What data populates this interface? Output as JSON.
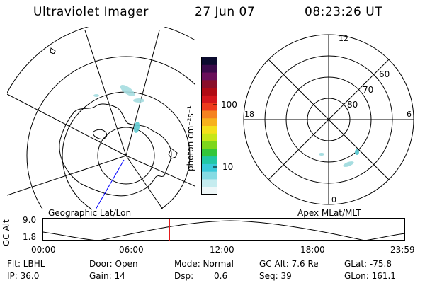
{
  "header": {
    "instrument": "Ultraviolet Imager",
    "date": "27 Jun 07",
    "time": "08:23:26 UT"
  },
  "colorbar": {
    "label": "photon cm⁻²s⁻¹",
    "ticks": [
      "100",
      "10"
    ],
    "colors": [
      "#0b0b2e",
      "#3a0a4a",
      "#6a0f5a",
      "#8a0f2a",
      "#b00b14",
      "#d4161c",
      "#ee3b1d",
      "#f58220",
      "#f7b11c",
      "#f4e01a",
      "#c7e617",
      "#7dd61c",
      "#33c63a",
      "#21c7a4",
      "#39c9d9",
      "#86dbe3",
      "#c5ecef",
      "#eef7f8"
    ]
  },
  "geographic_label": "Geographic Lat/Lon",
  "apex_label": "Apex MLat/MLT",
  "polar": {
    "mlt_labels": {
      "top": "12",
      "left": "18",
      "right": "6",
      "bottom": "0"
    },
    "lat_labels": [
      "60",
      "70",
      "80"
    ]
  },
  "timeline": {
    "ylabel": "GC Alt",
    "ymax": "9.0",
    "ymin": "1.8",
    "ticks": [
      "00:00",
      "06:00",
      "12:00",
      "18:00",
      "23:59"
    ],
    "marker_fraction": 0.35
  },
  "info": {
    "flt": "Flt: LBHL",
    "ip": "IP: 36.0",
    "door": "Door: Open",
    "gain": "Gain: 14",
    "mode": "Mode: Normal",
    "dsp_label": "Dsp:",
    "dsp_value": "0.6",
    "gcalt": "GC Alt: 7.6 Re",
    "seq": "Seq: 39",
    "glat": "GLat: -75.8",
    "glon": "GLon: 161.1"
  },
  "colors": {
    "marker": "#e41a1c",
    "track": "#0000ff",
    "aurora": "#a6dde0"
  }
}
